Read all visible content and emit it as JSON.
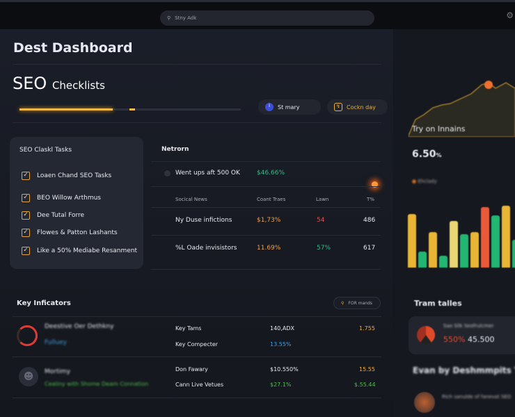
{
  "topbar": {
    "search_placeholder": "Stny Adk",
    "settings_icon": "gear-icon"
  },
  "header": {
    "title": "Dest Dashboard",
    "section_title_big": "SEO",
    "section_title_small": "Checklists",
    "progress_percent": 42,
    "buttons": [
      {
        "label": "St mary",
        "icon": "info-icon",
        "color": "#3d4fd6"
      },
      {
        "label": "Cockn day",
        "icon": "bolt-icon",
        "color": "#e8b23a"
      }
    ]
  },
  "tasks": {
    "title": "SEO Claskl Tasks",
    "items": [
      "Loaen Chand SEO Tasks",
      "BEO Willow Arthmus",
      "Dee Tutal Forre",
      "Flowes & Patton Lashants",
      "Like a 50% Mediabe Resanment"
    ]
  },
  "netron": {
    "title": "Netrorn",
    "top_row": {
      "label": "Went ups aft 500 OK",
      "value": "$46.66%"
    },
    "columns": [
      "Socical News",
      "Coant Traes",
      "Lawn",
      "T%"
    ],
    "rows": [
      {
        "name": "Ny Duse infictions",
        "v1": "$1,73%",
        "v2": "54",
        "v3": "486"
      },
      {
        "name": "%L Oade invisistors",
        "v1": "11.69%",
        "v2": "57%",
        "v3": "617"
      }
    ]
  },
  "key": {
    "title": "Key Inficators",
    "filter_label": "FOR mands",
    "rows": [
      {
        "name": "Deestive Oer Dethkny",
        "sub": "Fulluey",
        "lines": [
          {
            "label": "Key Tams",
            "value": "140,ADX",
            "extra": "1.755"
          },
          {
            "label": "Key Compecter",
            "value": "13.55%",
            "extra": ""
          }
        ]
      },
      {
        "name": "Mortimy",
        "sub": "Cealiny with Shome Deam Connation",
        "lines": [
          {
            "label": "Don Fawary",
            "value": "$10.550%",
            "extra": "15.55"
          },
          {
            "label": "Cann Live Vetues",
            "value": "$27.1%",
            "extra": "$.55.44"
          }
        ]
      }
    ]
  },
  "right_panel": {
    "chart_title": "Try on Innains",
    "value": "6.50",
    "value_suffix": "%",
    "legend": "Ehclady",
    "bars": [
      {
        "value": 77,
        "color": "#e8b534"
      },
      {
        "value": 23,
        "color": "#22b673"
      },
      {
        "value": 51,
        "color": "#e8b534"
      },
      {
        "value": 17,
        "color": "#22b673"
      },
      {
        "value": 67,
        "color": "#e9d774"
      },
      {
        "value": 48,
        "color": "#22b673"
      },
      {
        "value": 51,
        "color": "#e8b534"
      },
      {
        "value": 87,
        "color": "#e9593a"
      },
      {
        "value": 75,
        "color": "#22b673"
      },
      {
        "value": 89,
        "color": "#e8b534"
      },
      {
        "value": 40,
        "color": "#22b673"
      }
    ],
    "section2": "Tram talles",
    "stat_label": "Sao Silk Seofrulcmer",
    "stat_pct": "550%",
    "stat_value": "45.500",
    "section3": "Evan by Deshmmpits Ti",
    "item_text": "Rich sanulde of fanevat SEO"
  }
}
